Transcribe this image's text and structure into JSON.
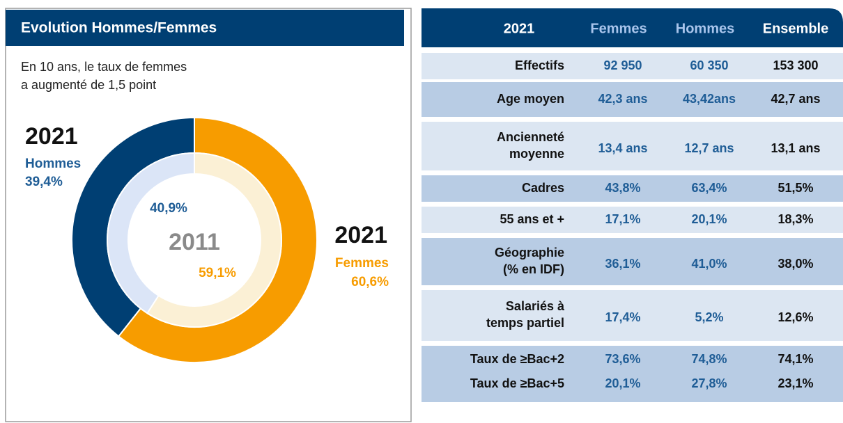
{
  "header": {
    "title": "Evolution Hommes/Femmes",
    "subtitle_lines": [
      "En 10 ans, le taux de femmes",
      "a augmenté de 1,5 point"
    ]
  },
  "chart_data": [
    {
      "type": "donut",
      "title": "2021",
      "categories": [
        "Hommes",
        "Femmes"
      ],
      "values": [
        39.4,
        60.6
      ],
      "value_labels": [
        "39,4%",
        "60,6%"
      ],
      "colors": [
        "#003f73",
        "#f79c00"
      ]
    },
    {
      "type": "donut",
      "title": "2011",
      "values": [
        40.9,
        59.1
      ],
      "value_labels": [
        "40,9%",
        "59,1%"
      ],
      "colors": [
        "#dbe5f7",
        "#fbf0d5"
      ]
    }
  ],
  "table": {
    "columns": [
      "2021",
      "Femmes",
      "Hommes",
      "Ensemble"
    ],
    "rows": [
      {
        "label": [
          "Effectifs"
        ],
        "values": [
          "92 950",
          "60 350",
          "153 300"
        ]
      },
      {
        "label": [
          "Age moyen"
        ],
        "values": [
          "42,3 ans",
          "43,42ans",
          "42,7 ans"
        ]
      },
      {
        "label": [
          "Ancienneté",
          "moyenne"
        ],
        "values": [
          "13,4 ans",
          "12,7 ans",
          "13,1 ans"
        ]
      },
      {
        "label": [
          "Cadres"
        ],
        "values": [
          "43,8%",
          "63,4%",
          "51,5%"
        ]
      },
      {
        "label": [
          "55 ans et +"
        ],
        "values": [
          "17,1%",
          "20,1%",
          "18,3%"
        ]
      },
      {
        "label": [
          "Géographie",
          "(% en IDF)"
        ],
        "values": [
          "36,1%",
          "41,0%",
          "38,0%"
        ]
      },
      {
        "label": [
          "Salariés à",
          "temps partiel"
        ],
        "values": [
          "17,4%",
          "5,2%",
          "12,6%"
        ]
      },
      {
        "label": [
          "Taux de  ≥Bac+2"
        ],
        "values": [
          "73,6%",
          "74,8%",
          "74,1%"
        ]
      },
      {
        "label": [
          "Taux de  ≥Bac+5"
        ],
        "values": [
          "20,1%",
          "27,8%",
          "23,1%"
        ]
      }
    ]
  }
}
